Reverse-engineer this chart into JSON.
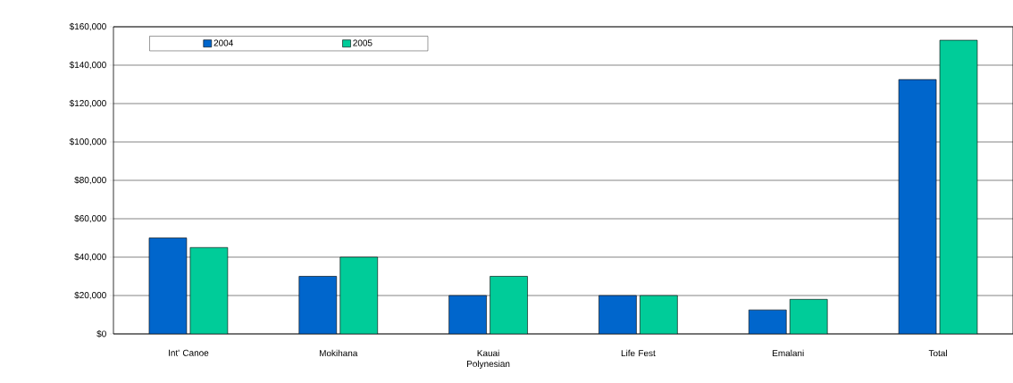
{
  "chart_data": {
    "type": "bar",
    "categories": [
      "Int' Canoe",
      "Mokihana",
      "Kauai Polynesian",
      "Life Fest",
      "Emalani",
      "Total"
    ],
    "series": [
      {
        "name": "2004",
        "color": "#0066cc",
        "values": [
          50000,
          30000,
          20000,
          20000,
          12500,
          132500
        ]
      },
      {
        "name": "2005",
        "color": "#00cc99",
        "values": [
          45000,
          40000,
          30000,
          20000,
          18000,
          153000
        ]
      }
    ],
    "ylim": [
      0,
      160000
    ],
    "yticks": [
      {
        "value": 0,
        "label": "$0"
      },
      {
        "value": 20000,
        "label": "$20,000"
      },
      {
        "value": 40000,
        "label": "$40,000"
      },
      {
        "value": 60000,
        "label": "$60,000"
      },
      {
        "value": 80000,
        "label": "$80,000"
      },
      {
        "value": 100000,
        "label": "$100,000"
      },
      {
        "value": 120000,
        "label": "$120,000"
      },
      {
        "value": 140000,
        "label": "$140,000"
      },
      {
        "value": 160000,
        "label": "$160,000"
      }
    ],
    "grid": "y",
    "legend": "top left"
  }
}
